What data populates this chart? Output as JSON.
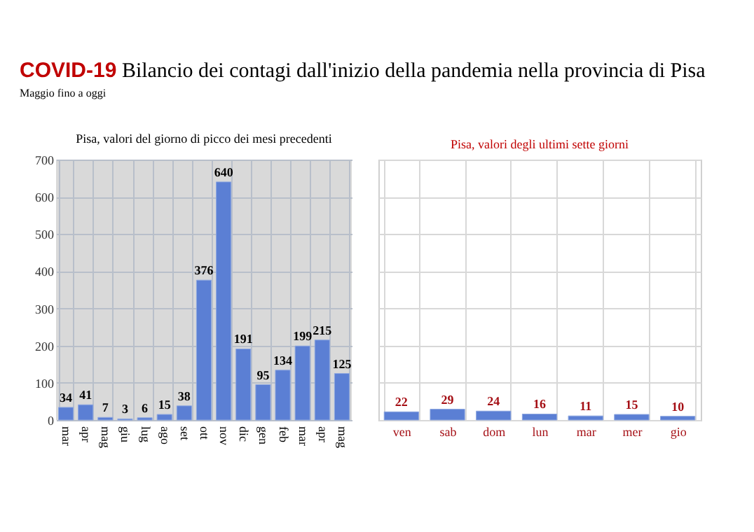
{
  "chart_data": [
    {
      "type": "bar",
      "title": "COVID-19 Bilancio dei contagi dall'inizio della pandemia nella provincia di Pisa",
      "subtitle": "Maggio fino a oggi",
      "annotations": [
        "Pisa, valori del giorno di picco dei mesi precedenti"
      ],
      "categories": [
        "mar",
        "apr",
        "mag",
        "giu",
        "lug",
        "ago",
        "set",
        "ott",
        "nov",
        "dic",
        "gen",
        "feb",
        "mar",
        "apr",
        "mag"
      ],
      "values": [
        34,
        41,
        7,
        3,
        6,
        15,
        38,
        376,
        640,
        191,
        95,
        134,
        199,
        215,
        125
      ],
      "color": "#5b7fd4",
      "ylim": [
        0,
        700
      ],
      "yticks": [
        0,
        100,
        200,
        300,
        400,
        500,
        600,
        700
      ],
      "grid": true,
      "data_labels": true
    },
    {
      "type": "bar",
      "title": "Pisa, valori degli ultimi sette giorni",
      "categories": [
        "ven",
        "sab",
        "dom",
        "lun",
        "mar",
        "mer",
        "gio"
      ],
      "values": [
        22,
        29,
        24,
        16,
        11,
        15,
        10
      ],
      "color": "#5b7fd4",
      "ylim": [
        0,
        700
      ],
      "yticks": [
        0,
        100,
        200,
        300,
        400,
        500,
        600,
        700
      ],
      "grid": true,
      "data_labels": true,
      "tick_labels": "x"
    }
  ]
}
